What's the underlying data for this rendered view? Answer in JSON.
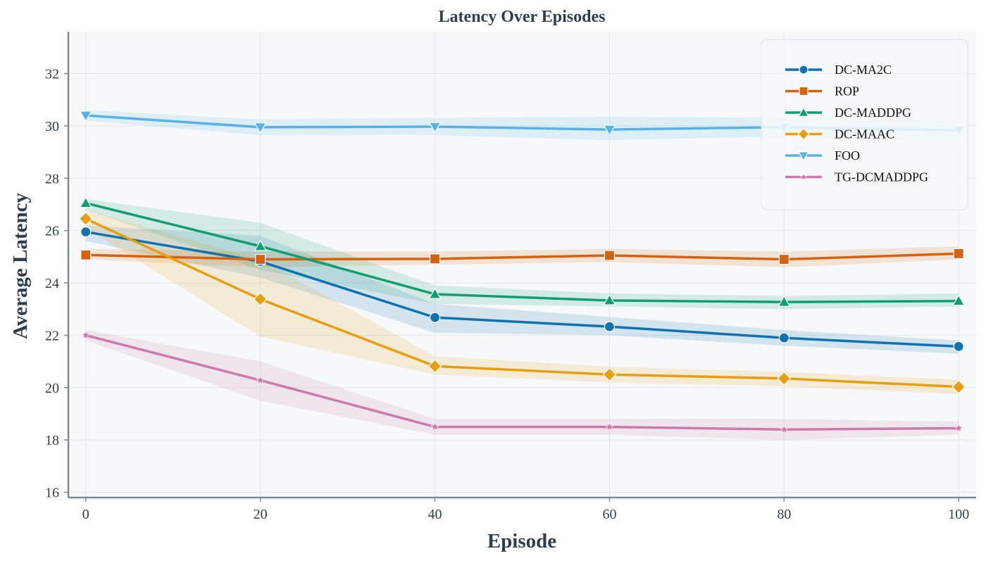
{
  "chart_data": {
    "type": "line",
    "title": "Latency Over Episodes",
    "xlabel": "Episode",
    "ylabel": "Average Latency",
    "x": [
      0,
      20,
      40,
      60,
      80,
      100
    ],
    "xlim": [
      -2,
      102
    ],
    "ylim": [
      15.8,
      33.6
    ],
    "xticks": [
      0,
      20,
      40,
      60,
      80,
      100
    ],
    "yticks": [
      16,
      18,
      20,
      22,
      24,
      26,
      28,
      30,
      32
    ],
    "grid": true,
    "legend_position": "top-right",
    "series": [
      {
        "name": "DC-MA2C",
        "color": "#0f72b1",
        "marker": "circle",
        "values": [
          25.95,
          24.82,
          22.68,
          22.33,
          21.9,
          21.57
        ],
        "lower": [
          25.6,
          24.2,
          22.1,
          22.0,
          21.6,
          21.3
        ],
        "upper": [
          26.2,
          25.8,
          23.2,
          22.7,
          22.2,
          21.8
        ]
      },
      {
        "name": "ROP",
        "color": "#d4620f",
        "marker": "square",
        "values": [
          25.07,
          24.9,
          24.92,
          25.05,
          24.9,
          25.12
        ],
        "lower": [
          24.9,
          24.6,
          24.7,
          24.8,
          24.6,
          24.9
        ],
        "upper": [
          25.3,
          25.2,
          25.2,
          25.3,
          25.2,
          25.4
        ]
      },
      {
        "name": "DC-MADDPG",
        "color": "#139e72",
        "marker": "triangle-up",
        "values": [
          27.05,
          25.4,
          23.57,
          23.33,
          23.27,
          23.31
        ],
        "lower": [
          26.8,
          24.5,
          23.2,
          23.1,
          23.0,
          23.1
        ],
        "upper": [
          27.2,
          26.3,
          23.9,
          23.6,
          23.5,
          23.6
        ]
      },
      {
        "name": "DC-MAAC",
        "color": "#e79f10",
        "marker": "diamond",
        "values": [
          26.45,
          23.38,
          20.82,
          20.5,
          20.35,
          20.03
        ],
        "lower": [
          26.1,
          21.95,
          20.5,
          20.2,
          20.05,
          19.75
        ],
        "upper": [
          26.8,
          24.9,
          21.2,
          20.8,
          20.6,
          20.3
        ]
      },
      {
        "name": "FOO",
        "color": "#58b2e5",
        "marker": "triangle-down",
        "values": [
          30.4,
          29.95,
          29.97,
          29.86,
          29.95,
          29.83
        ],
        "lower": [
          30.2,
          29.65,
          29.65,
          29.45,
          29.6,
          29.4
        ],
        "upper": [
          30.6,
          30.25,
          30.3,
          30.35,
          30.3,
          30.2
        ]
      },
      {
        "name": "TG-DCMADDPG",
        "color": "#cc7aaa",
        "marker": "star",
        "values": [
          22.0,
          20.28,
          18.5,
          18.5,
          18.4,
          18.45
        ],
        "lower": [
          21.8,
          19.5,
          18.2,
          18.2,
          18.0,
          18.2
        ],
        "upper": [
          22.2,
          21.0,
          18.8,
          18.8,
          18.8,
          18.7
        ]
      }
    ]
  }
}
